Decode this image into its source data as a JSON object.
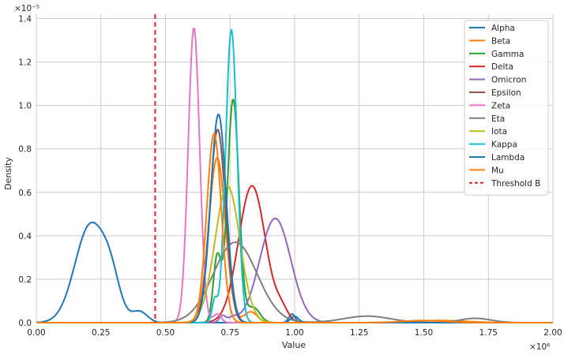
{
  "chart_data": {
    "type": "line",
    "subtype": "kde-density",
    "xlabel": "Value",
    "ylabel": "Density",
    "x_offset_label": "×10⁶",
    "y_offset_label": "×10⁻⁵",
    "xlim": [
      0,
      2000000
    ],
    "ylim": [
      0,
      1.42
    ],
    "grid": true,
    "legend_position": "upper-right",
    "x_ticks": [
      0,
      250000,
      500000,
      750000,
      1000000,
      1250000,
      1500000,
      1750000,
      2000000
    ],
    "x_tick_labels": [
      "0.00",
      "0.25",
      "0.50",
      "0.75",
      "1.00",
      "1.25",
      "1.50",
      "1.75",
      "2.00"
    ],
    "y_ticks": [
      0,
      0.2,
      0.4,
      0.6,
      0.8,
      1.0,
      1.2,
      1.4
    ],
    "y_tick_labels": [
      "0.0",
      "0.2",
      "0.4",
      "0.6",
      "0.8",
      "1.0",
      "1.2",
      "1.4"
    ],
    "threshold": {
      "name": "Threshold B",
      "x": 460000,
      "color": "#d62728",
      "style": "dashed"
    },
    "series": [
      {
        "name": "Alpha",
        "color": "#1f77b4",
        "components": [
          {
            "mu": 210000,
            "sigma": 60000,
            "amp": 0.45
          },
          {
            "mu": 290000,
            "sigma": 35000,
            "amp": 0.13
          },
          {
            "mu": 400000,
            "sigma": 30000,
            "amp": 0.05
          },
          {
            "mu": 990000,
            "sigma": 12000,
            "amp": 0.04
          }
        ]
      },
      {
        "name": "Beta",
        "color": "#ff7f0e",
        "components": [
          {
            "mu": 700000,
            "sigma": 32000,
            "amp": 0.76
          },
          {
            "mu": 830000,
            "sigma": 25000,
            "amp": 0.05
          },
          {
            "mu": 1560000,
            "sigma": 100000,
            "amp": 0.01
          }
        ]
      },
      {
        "name": "Gamma",
        "color": "#2ca02c",
        "components": [
          {
            "mu": 762000,
            "sigma": 22000,
            "amp": 1.03
          },
          {
            "mu": 700000,
            "sigma": 15000,
            "amp": 0.3
          },
          {
            "mu": 840000,
            "sigma": 25000,
            "amp": 0.07
          }
        ]
      },
      {
        "name": "Delta",
        "color": "#d62728",
        "components": [
          {
            "mu": 835000,
            "sigma": 52000,
            "amp": 0.63
          },
          {
            "mu": 950000,
            "sigma": 25000,
            "amp": 0.05
          }
        ]
      },
      {
        "name": "Omicron",
        "color": "#9467bd",
        "components": [
          {
            "mu": 925000,
            "sigma": 60000,
            "amp": 0.48
          },
          {
            "mu": 720000,
            "sigma": 12000,
            "amp": 0.03
          },
          {
            "mu": 760000,
            "sigma": 20000,
            "amp": 0.02
          }
        ]
      },
      {
        "name": "Epsilon",
        "color": "#8c564b",
        "components": [
          {
            "mu": 702000,
            "sigma": 30000,
            "amp": 0.89
          }
        ]
      },
      {
        "name": "Zeta",
        "color": "#e377c2",
        "components": [
          {
            "mu": 610000,
            "sigma": 22000,
            "amp": 1.36
          },
          {
            "mu": 700000,
            "sigma": 15000,
            "amp": 0.04
          }
        ]
      },
      {
        "name": "Eta",
        "color": "#7f7f7f",
        "components": [
          {
            "mu": 770000,
            "sigma": 85000,
            "amp": 0.37
          },
          {
            "mu": 1280000,
            "sigma": 90000,
            "amp": 0.03
          },
          {
            "mu": 1700000,
            "sigma": 60000,
            "amp": 0.02
          }
        ]
      },
      {
        "name": "Iota",
        "color": "#bcbd22",
        "components": [
          {
            "mu": 740000,
            "sigma": 48000,
            "amp": 0.63
          }
        ]
      },
      {
        "name": "Kappa",
        "color": "#17becf",
        "components": [
          {
            "mu": 755000,
            "sigma": 22000,
            "amp": 1.35
          },
          {
            "mu": 690000,
            "sigma": 10000,
            "amp": 0.1
          }
        ]
      },
      {
        "name": "Lambda",
        "color": "#1f77b4",
        "components": [
          {
            "mu": 705000,
            "sigma": 30000,
            "amp": 0.96
          },
          {
            "mu": 1000000,
            "sigma": 15000,
            "amp": 0.03
          }
        ]
      },
      {
        "name": "Mu",
        "color": "#ff7f0e",
        "components": [
          {
            "mu": 688000,
            "sigma": 28000,
            "amp": 0.87
          },
          {
            "mu": 1500000,
            "sigma": 80000,
            "amp": 0.01
          }
        ]
      }
    ]
  }
}
